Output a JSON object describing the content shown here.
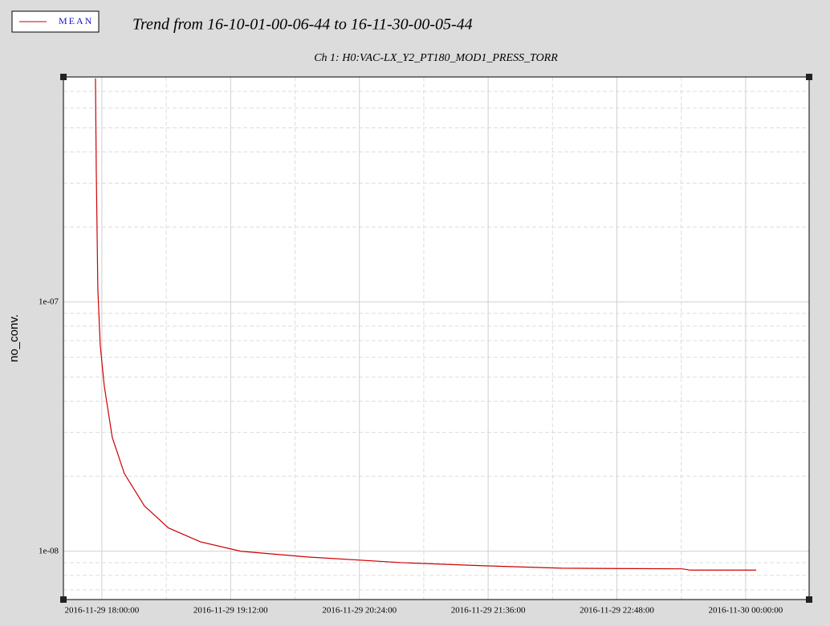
{
  "chart_data": {
    "type": "line",
    "title": "Trend from 16-10-01-00-06-44 to 16-11-30-00-05-44",
    "subtitle": "Ch 1: H0:VAC-LX_Y2_PT180_MOD1_PRESS_TORR",
    "y_label": "no_conv.",
    "log_y": true,
    "grid": true,
    "legend": "top-left",
    "x": [
      "2016-11-29 17:56:25",
      "2016-11-29 17:56:52",
      "2016-11-29 17:57:46",
      "2016-11-29 17:59:06",
      "2016-11-29 18:01:21",
      "2016-11-29 18:05:50",
      "2016-11-29 18:12:34",
      "2016-11-29 18:23:48",
      "2016-11-29 18:37:16",
      "2016-11-29 18:55:13",
      "2016-11-29 19:17:40",
      "2016-11-29 19:53:35",
      "2016-11-29 20:47:26",
      "2016-11-29 21:32:20",
      "2016-11-29 22:17:13",
      "2016-11-29 23:24:34",
      "2016-11-29 23:29:02",
      "2016-11-30 00:05:52"
    ],
    "series": [
      {
        "name": "MEAN",
        "color": "#cc0000",
        "values": [
          7.9e-07,
          3.4e-07,
          1.12e-07,
          6.7e-08,
          4.6e-08,
          2.86e-08,
          2.05e-08,
          1.52e-08,
          1.24e-08,
          1.09e-08,
          1e-08,
          9.5e-09,
          9e-09,
          8.75e-09,
          8.55e-09,
          8.5e-09,
          8.4e-09,
          8.4e-09
        ]
      }
    ],
    "xlim": [
      "2016-11-29 17:38:30",
      "2016-11-30 00:35:30"
    ],
    "xticks": [
      "2016-11-29 18:00:00",
      "2016-11-29 19:12:00",
      "2016-11-29 20:24:00",
      "2016-11-29 21:36:00",
      "2016-11-29 22:48:00",
      "2016-11-30 00:00:00"
    ],
    "ylim": [
      6.4e-09,
      8e-07
    ],
    "yticks": [
      {
        "value": 1e-07,
        "label": "1e-07"
      },
      {
        "value": 1e-08,
        "label": "1e-08"
      }
    ]
  }
}
